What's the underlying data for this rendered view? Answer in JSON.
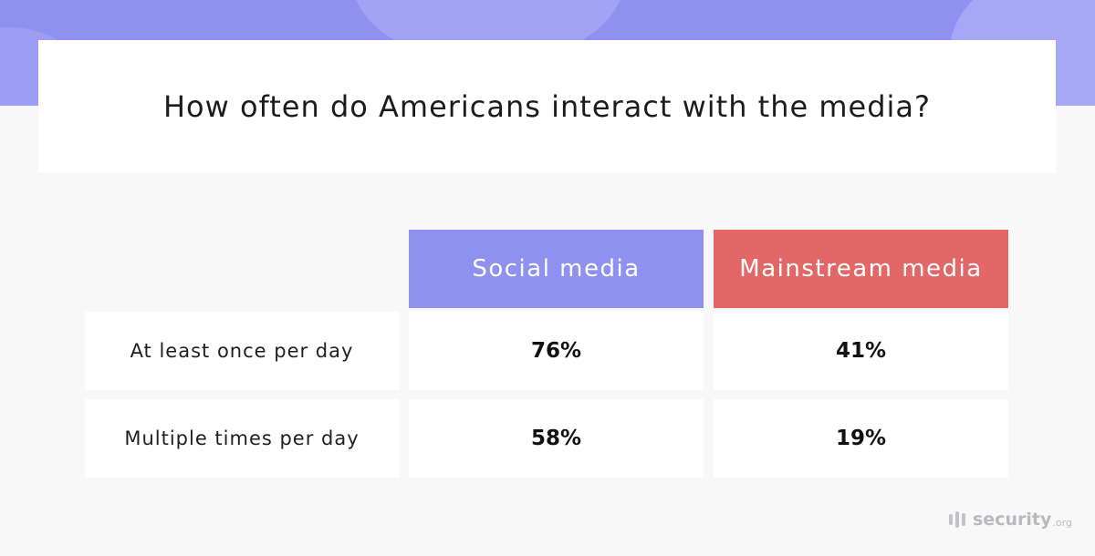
{
  "chart_data": {
    "type": "table",
    "title": "How often do Americans interact with the media?",
    "columns": [
      "Social media",
      "Mainstream media"
    ],
    "rows": [
      {
        "label": "At least once per day",
        "values": [
          "76%",
          "41%"
        ]
      },
      {
        "label": "Multiple times per day",
        "values": [
          "58%",
          "19%"
        ]
      }
    ],
    "colors": {
      "social_header": "#8f90f0",
      "mainstream_header": "#e46767",
      "background_band": "#8f90f0"
    }
  },
  "brand": {
    "name": "security",
    "tld": ".org",
    "icon": "bars-logo-icon"
  }
}
